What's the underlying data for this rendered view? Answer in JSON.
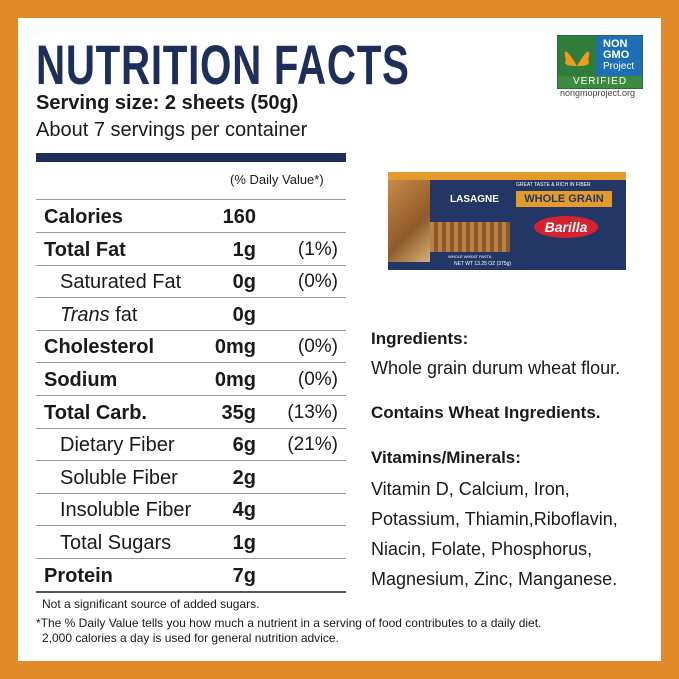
{
  "header": {
    "title": "NUTRITION FACTS",
    "serving_size": "Serving size: 2 sheets (50g)",
    "servings": "About 7 servings per container"
  },
  "badge": {
    "top": "NON",
    "middle": "GMO",
    "project": "Project",
    "verified": "VERIFIED",
    "url": "nongmoproject.org"
  },
  "table": {
    "dv_header": "(% Daily Value*)",
    "nutrients": [
      {
        "name": "Calories",
        "amount": "160"
      },
      {
        "name": "Total Fat",
        "amount": "1g",
        "dv": "(1%)",
        "sub": [
          {
            "name": "Saturated Fat",
            "amount": "0g",
            "dv": "(0%)"
          },
          {
            "italic": "Trans",
            "name": "fat",
            "amount": "0g"
          }
        ]
      },
      {
        "name": "Cholesterol",
        "amount": "0mg",
        "dv": "(0%)"
      },
      {
        "name": "Sodium",
        "amount": "0mg",
        "dv": "(0%)"
      },
      {
        "name": "Total Carb.",
        "amount": "35g",
        "dv": "(13%)",
        "sub": [
          {
            "name": "Dietary Fiber",
            "amount": "6g",
            "dv": "(21%)"
          },
          {
            "name": "Soluble Fiber",
            "amount": "2g"
          },
          {
            "name": "Insoluble Fiber",
            "amount": "4g"
          },
          {
            "name": "Total Sugars",
            "amount": "1g"
          }
        ]
      },
      {
        "name": "Protein",
        "amount": "7g"
      }
    ]
  },
  "footer": {
    "note": "Not a significant source of added sugars.",
    "daily_value": [
      "*The % Daily Value tells you how much a nutrient in a serving of food contributes to a daily diet.",
      "2,000 calories a day is used for general nutrition advice."
    ]
  },
  "package": {
    "tagline": "GREAT TASTE & RICH IN FIBER",
    "name": "LASAGNE",
    "variant": "WHOLE GRAIN",
    "brand": "Barilla",
    "description": "WHOLE WHEAT PASTA",
    "weight": "NET WT 13.25 OZ (375g)"
  },
  "ingredients": {
    "heading": "Ingredients:",
    "text": "Whole grain durum wheat flour."
  },
  "allergen": "Contains Wheat Ingredients.",
  "vitamins": {
    "heading": "Vitamins/Minerals:",
    "lines": [
      "Vitamin D, Calcium, Iron,",
      "Potassium, Thiamin,Riboflavin,",
      "Niacin, Folate, Phosphorus,",
      "Magnesium, Zinc, Manganese."
    ]
  }
}
